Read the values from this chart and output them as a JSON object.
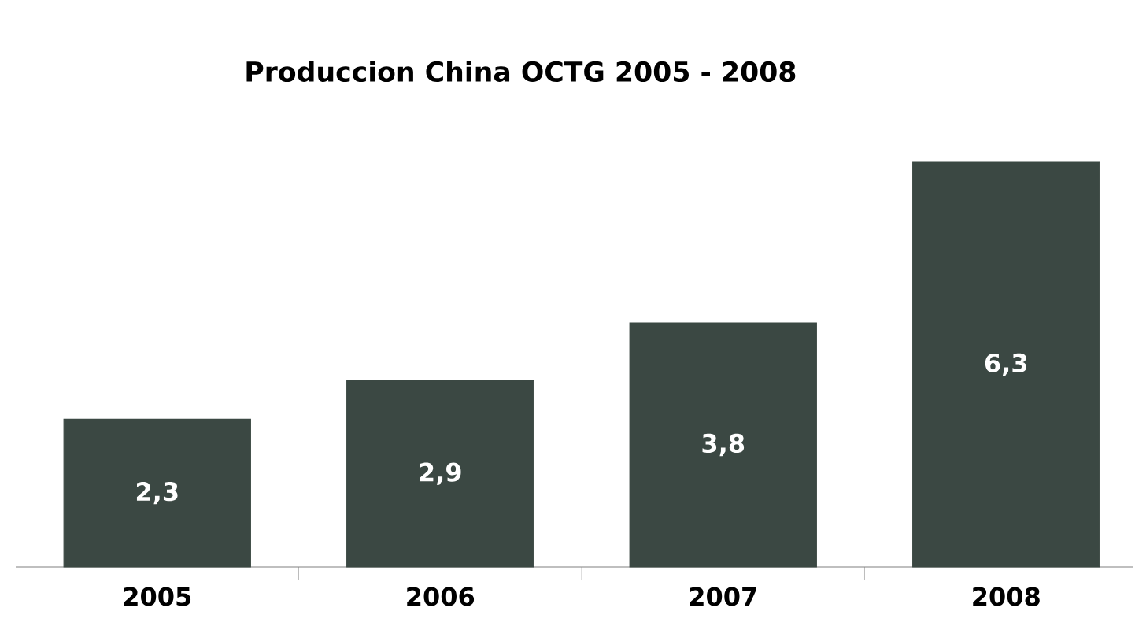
{
  "chart_data": {
    "type": "bar",
    "title": "Produccion China OCTG 2005 - 2008",
    "categories": [
      "2005",
      "2006",
      "2007",
      "2008"
    ],
    "values": [
      2.3,
      2.9,
      3.8,
      6.3
    ],
    "value_labels": [
      "2,3",
      "2,9",
      "3,8",
      "6,3"
    ],
    "color": "#3b4843"
  }
}
